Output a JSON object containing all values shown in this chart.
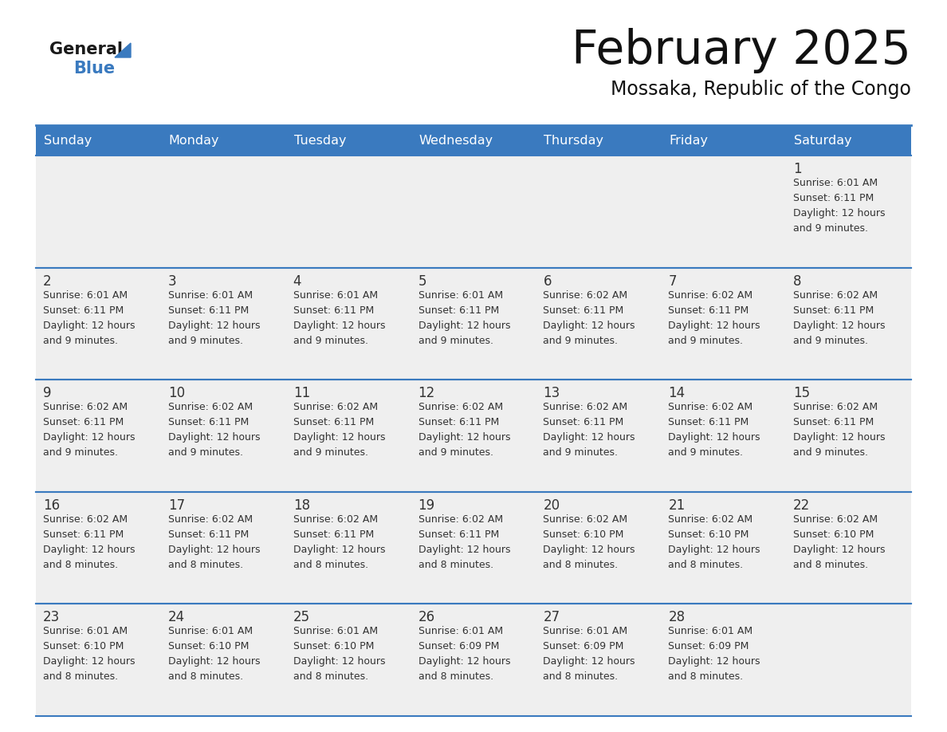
{
  "title": "February 2025",
  "subtitle": "Mossaka, Republic of the Congo",
  "header_bg": "#3a7abf",
  "header_text": "#ffffff",
  "cell_bg": "#efefef",
  "row_line_color": "#3a7abf",
  "text_color": "#333333",
  "days_of_week": [
    "Sunday",
    "Monday",
    "Tuesday",
    "Wednesday",
    "Thursday",
    "Friday",
    "Saturday"
  ],
  "calendar_data": [
    [
      {
        "day": "",
        "info": ""
      },
      {
        "day": "",
        "info": ""
      },
      {
        "day": "",
        "info": ""
      },
      {
        "day": "",
        "info": ""
      },
      {
        "day": "",
        "info": ""
      },
      {
        "day": "",
        "info": ""
      },
      {
        "day": "1",
        "info": "Sunrise: 6:01 AM\nSunset: 6:11 PM\nDaylight: 12 hours\nand 9 minutes."
      }
    ],
    [
      {
        "day": "2",
        "info": "Sunrise: 6:01 AM\nSunset: 6:11 PM\nDaylight: 12 hours\nand 9 minutes."
      },
      {
        "day": "3",
        "info": "Sunrise: 6:01 AM\nSunset: 6:11 PM\nDaylight: 12 hours\nand 9 minutes."
      },
      {
        "day": "4",
        "info": "Sunrise: 6:01 AM\nSunset: 6:11 PM\nDaylight: 12 hours\nand 9 minutes."
      },
      {
        "day": "5",
        "info": "Sunrise: 6:01 AM\nSunset: 6:11 PM\nDaylight: 12 hours\nand 9 minutes."
      },
      {
        "day": "6",
        "info": "Sunrise: 6:02 AM\nSunset: 6:11 PM\nDaylight: 12 hours\nand 9 minutes."
      },
      {
        "day": "7",
        "info": "Sunrise: 6:02 AM\nSunset: 6:11 PM\nDaylight: 12 hours\nand 9 minutes."
      },
      {
        "day": "8",
        "info": "Sunrise: 6:02 AM\nSunset: 6:11 PM\nDaylight: 12 hours\nand 9 minutes."
      }
    ],
    [
      {
        "day": "9",
        "info": "Sunrise: 6:02 AM\nSunset: 6:11 PM\nDaylight: 12 hours\nand 9 minutes."
      },
      {
        "day": "10",
        "info": "Sunrise: 6:02 AM\nSunset: 6:11 PM\nDaylight: 12 hours\nand 9 minutes."
      },
      {
        "day": "11",
        "info": "Sunrise: 6:02 AM\nSunset: 6:11 PM\nDaylight: 12 hours\nand 9 minutes."
      },
      {
        "day": "12",
        "info": "Sunrise: 6:02 AM\nSunset: 6:11 PM\nDaylight: 12 hours\nand 9 minutes."
      },
      {
        "day": "13",
        "info": "Sunrise: 6:02 AM\nSunset: 6:11 PM\nDaylight: 12 hours\nand 9 minutes."
      },
      {
        "day": "14",
        "info": "Sunrise: 6:02 AM\nSunset: 6:11 PM\nDaylight: 12 hours\nand 9 minutes."
      },
      {
        "day": "15",
        "info": "Sunrise: 6:02 AM\nSunset: 6:11 PM\nDaylight: 12 hours\nand 9 minutes."
      }
    ],
    [
      {
        "day": "16",
        "info": "Sunrise: 6:02 AM\nSunset: 6:11 PM\nDaylight: 12 hours\nand 8 minutes."
      },
      {
        "day": "17",
        "info": "Sunrise: 6:02 AM\nSunset: 6:11 PM\nDaylight: 12 hours\nand 8 minutes."
      },
      {
        "day": "18",
        "info": "Sunrise: 6:02 AM\nSunset: 6:11 PM\nDaylight: 12 hours\nand 8 minutes."
      },
      {
        "day": "19",
        "info": "Sunrise: 6:02 AM\nSunset: 6:11 PM\nDaylight: 12 hours\nand 8 minutes."
      },
      {
        "day": "20",
        "info": "Sunrise: 6:02 AM\nSunset: 6:10 PM\nDaylight: 12 hours\nand 8 minutes."
      },
      {
        "day": "21",
        "info": "Sunrise: 6:02 AM\nSunset: 6:10 PM\nDaylight: 12 hours\nand 8 minutes."
      },
      {
        "day": "22",
        "info": "Sunrise: 6:02 AM\nSunset: 6:10 PM\nDaylight: 12 hours\nand 8 minutes."
      }
    ],
    [
      {
        "day": "23",
        "info": "Sunrise: 6:01 AM\nSunset: 6:10 PM\nDaylight: 12 hours\nand 8 minutes."
      },
      {
        "day": "24",
        "info": "Sunrise: 6:01 AM\nSunset: 6:10 PM\nDaylight: 12 hours\nand 8 minutes."
      },
      {
        "day": "25",
        "info": "Sunrise: 6:01 AM\nSunset: 6:10 PM\nDaylight: 12 hours\nand 8 minutes."
      },
      {
        "day": "26",
        "info": "Sunrise: 6:01 AM\nSunset: 6:09 PM\nDaylight: 12 hours\nand 8 minutes."
      },
      {
        "day": "27",
        "info": "Sunrise: 6:01 AM\nSunset: 6:09 PM\nDaylight: 12 hours\nand 8 minutes."
      },
      {
        "day": "28",
        "info": "Sunrise: 6:01 AM\nSunset: 6:09 PM\nDaylight: 12 hours\nand 8 minutes."
      },
      {
        "day": "",
        "info": ""
      }
    ]
  ],
  "logo_general_color": "#1a1a1a",
  "logo_blue_color": "#3a7abf",
  "logo_triangle_color": "#3a7abf"
}
